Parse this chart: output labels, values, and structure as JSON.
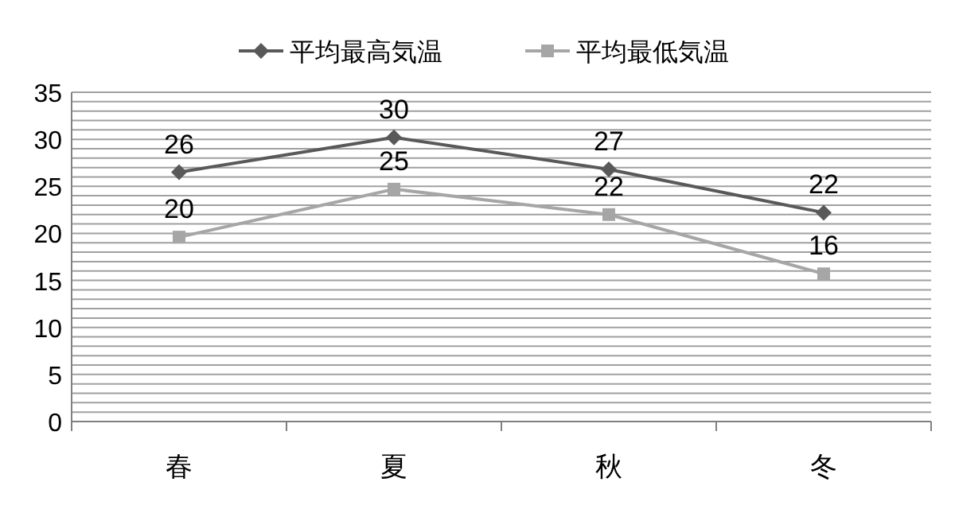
{
  "chart_data": {
    "type": "line",
    "categories": [
      "春",
      "夏",
      "秋",
      "冬"
    ],
    "series": [
      {
        "name": "平均最高気温",
        "color": "#595959",
        "marker": "diamond",
        "values": [
          26.5,
          30.2,
          26.8,
          22.2
        ],
        "value_labels": [
          "26",
          "30",
          "27",
          "22"
        ]
      },
      {
        "name": "平均最低気温",
        "color": "#a6a6a6",
        "marker": "square",
        "values": [
          19.6,
          24.7,
          22.0,
          15.7
        ],
        "value_labels": [
          "20",
          "25",
          "22",
          "16"
        ]
      }
    ],
    "ylim": [
      0,
      35
    ],
    "yticks": [
      0,
      {
        "value": 1,
        "label": null
      },
      {
        "value": 2,
        "label": null
      },
      {
        "value": 3,
        "label": null
      },
      {
        "value": 4,
        "label": null
      },
      5,
      {
        "value": 6,
        "label": null
      },
      {
        "value": 7,
        "label": null
      },
      {
        "value": 8,
        "label": null
      },
      {
        "value": 9,
        "label": null
      },
      10,
      {
        "value": 11,
        "label": null
      },
      {
        "value": 12,
        "label": null
      },
      {
        "value": 13,
        "label": null
      },
      {
        "value": 14,
        "label": null
      },
      15,
      {
        "value": 16,
        "label": null
      },
      {
        "value": 17,
        "label": null
      },
      {
        "value": 18,
        "label": null
      },
      {
        "value": 19,
        "label": null
      },
      20,
      {
        "value": 21,
        "label": null
      },
      {
        "value": 22,
        "label": null
      },
      {
        "value": 23,
        "label": null
      },
      {
        "value": 24,
        "label": null
      },
      25,
      {
        "value": 26,
        "label": null
      },
      {
        "value": 27,
        "label": null
      },
      {
        "value": 28,
        "label": null
      },
      {
        "value": 29,
        "label": null
      },
      30,
      {
        "value": 31,
        "label": null
      },
      {
        "value": 32,
        "label": null
      },
      {
        "value": 33,
        "label": null
      },
      {
        "value": 34,
        "label": null
      },
      35
    ],
    "grid": "y",
    "legend": "top",
    "line_style": "solid"
  }
}
